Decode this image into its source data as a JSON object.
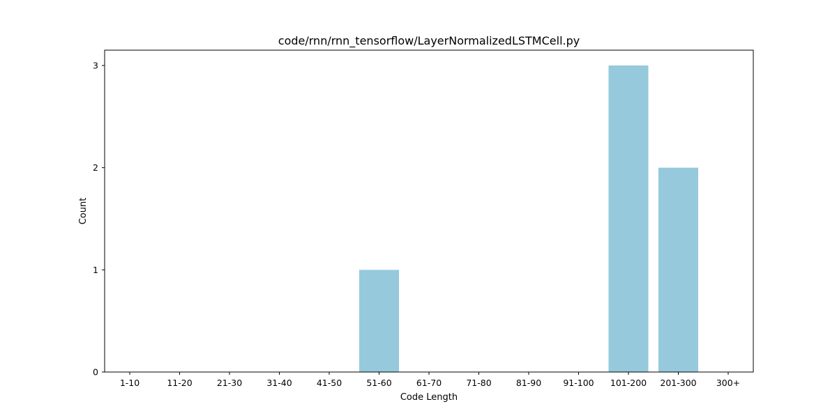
{
  "chart_data": {
    "type": "bar",
    "title": "code/rnn/rnn_tensorflow/LayerNormalizedLSTMCell.py",
    "xlabel": "Code Length",
    "ylabel": "Count",
    "categories": [
      "1-10",
      "11-20",
      "21-30",
      "31-40",
      "41-50",
      "51-60",
      "61-70",
      "71-80",
      "81-90",
      "91-100",
      "101-200",
      "201-300",
      "300+"
    ],
    "values": [
      0,
      0,
      0,
      0,
      0,
      1,
      0,
      0,
      0,
      0,
      3,
      2,
      0
    ],
    "ylim": [
      0,
      3.15
    ],
    "yticks": [
      0,
      1,
      2,
      3
    ],
    "bar_color": "#96c9dc",
    "grid": false,
    "legend": "none"
  }
}
